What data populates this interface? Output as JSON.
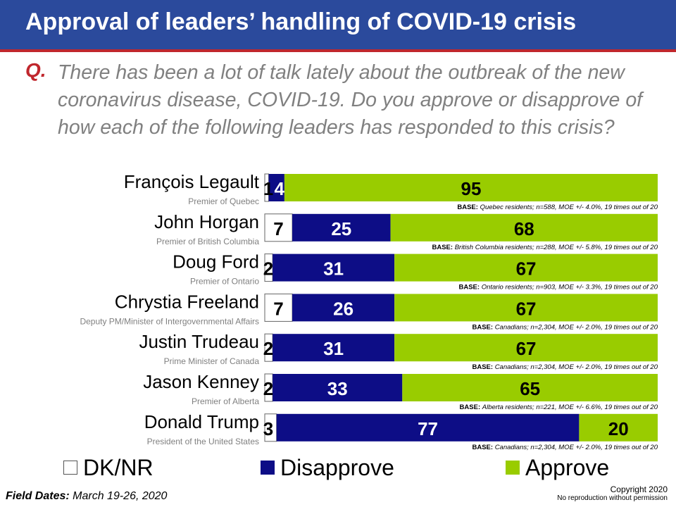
{
  "header": {
    "title": "Approval of leaders’ handling of COVID-19 crisis"
  },
  "question": {
    "marker": "Q.",
    "text": "There has been a lot of talk lately about the outbreak of the new coronavirus disease, COVID-19. Do you approve or disapprove of how each of the following leaders has responded to this crisis?"
  },
  "colors": {
    "dk": "#ffffff",
    "disapprove": "#0d0d86",
    "approve": "#99cc00",
    "header": "#2b4a9c",
    "accent": "#c0272d"
  },
  "legend": {
    "dk": "DK/NR",
    "disapprove": "Disapprove",
    "approve": "Approve"
  },
  "chart_data": {
    "type": "bar",
    "orientation": "horizontal",
    "stacked": true,
    "title": "Approval of leaders’ handling of COVID-19 crisis",
    "series_names": [
      "DK/NR",
      "Disapprove",
      "Approve"
    ],
    "xlim": [
      0,
      100
    ],
    "rows": [
      {
        "name": "François Legault",
        "role": "Premier of Quebec",
        "dk": 1,
        "disapprove": 4,
        "approve": 95,
        "base_label": "BASE:",
        "base": "Quebec residents; n=588, MOE +/- 4.0%, 19 times out of 20"
      },
      {
        "name": "John Horgan",
        "role": "Premier of British Columbia",
        "dk": 7,
        "disapprove": 25,
        "approve": 68,
        "base_label": "BASE:",
        "base": "British Columbia residents; n=288, MOE +/- 5.8%, 19 times out of 20"
      },
      {
        "name": "Doug Ford",
        "role": "Premier of Ontario",
        "dk": 2,
        "disapprove": 31,
        "approve": 67,
        "base_label": "BASE:",
        "base": "Ontario residents; n=903, MOE +/- 3.3%, 19 times out of 20"
      },
      {
        "name": "Chrystia Freeland",
        "role": "Deputy PM/Minister of Intergovernmental Affairs",
        "dk": 7,
        "disapprove": 26,
        "approve": 67,
        "base_label": "BASE:",
        "base": "Canadians; n=2,304, MOE +/- 2.0%, 19 times out of 20"
      },
      {
        "name": "Justin Trudeau",
        "role": "Prime Minister of Canada",
        "dk": 2,
        "disapprove": 31,
        "approve": 67,
        "base_label": "BASE:",
        "base": "Canadians; n=2,304, MOE +/- 2.0%, 19 times out of 20"
      },
      {
        "name": "Jason Kenney",
        "role": "Premier of Alberta",
        "dk": 2,
        "disapprove": 33,
        "approve": 65,
        "base_label": "BASE:",
        "base": "Alberta residents; n=221, MOE +/- 6.6%, 19 times out of 20"
      },
      {
        "name": "Donald Trump",
        "role": "President of the United States",
        "dk": 3,
        "disapprove": 77,
        "approve": 20,
        "base_label": "BASE:",
        "base": "Canadians; n=2,304, MOE +/- 2.0%, 19 times out of 20"
      }
    ]
  },
  "footer": {
    "field_dates_label": "Field Dates:",
    "field_dates": "March 19-26, 2020",
    "copyright": "Copyright  2020",
    "notice": "No reproduction without permission"
  }
}
